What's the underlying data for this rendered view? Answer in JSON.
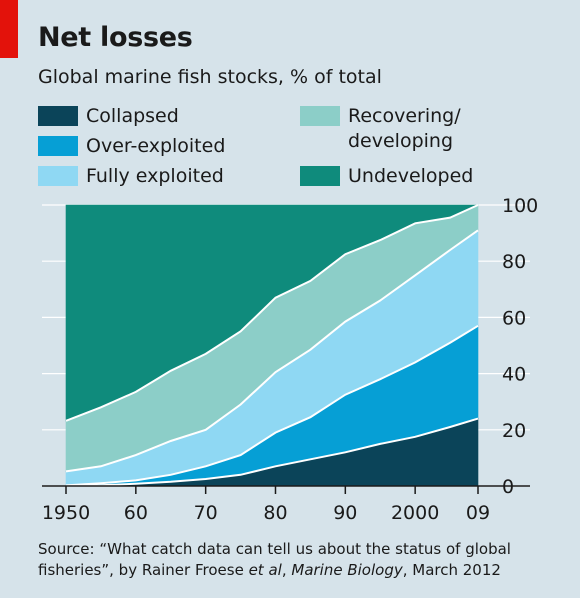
{
  "header": {
    "title": "Net losses",
    "subtitle": "Global marine fish stocks, % of total"
  },
  "legend": [
    {
      "label": "Collapsed",
      "color": "#0b4459"
    },
    {
      "label": "Over-exploited",
      "color": "#069fd5"
    },
    {
      "label": "Fully exploited",
      "color": "#8fd8f3"
    },
    {
      "label": "Recovering/\ndeveloping",
      "color": "#8ccec8"
    },
    {
      "label": "Undeveloped",
      "color": "#0f8b7c"
    }
  ],
  "source": {
    "prefix": "Source: “What catch data can tell us about the status of global fisheries”, by Rainer Froese ",
    "etal": "et al",
    "sep": ", ",
    "journal": "Marine Biology",
    "suffix": ", March 2012"
  },
  "chart_data": {
    "type": "area",
    "stacked": true,
    "x": [
      1950,
      1955,
      1960,
      1965,
      1970,
      1975,
      1980,
      1985,
      1990,
      1995,
      2000,
      2005,
      2009
    ],
    "xtick_values": [
      1950,
      1960,
      1970,
      1980,
      1990,
      2000,
      2009
    ],
    "xtick_labels": [
      "1950",
      "60",
      "70",
      "80",
      "90",
      "2000",
      "09"
    ],
    "ylim": [
      0,
      100
    ],
    "yticks": [
      0,
      20,
      40,
      60,
      80,
      100
    ],
    "y_axis_side": "right",
    "grid": true,
    "legend_position": "top",
    "series": [
      {
        "name": "Collapsed",
        "color": "#0b4459",
        "values": [
          0,
          0.3,
          0.8,
          1.5,
          2.5,
          4,
          7,
          9.5,
          12,
          15,
          17.5,
          21,
          24
        ]
      },
      {
        "name": "Over-exploited",
        "color": "#069fd5",
        "values": [
          0.2,
          0.7,
          1.2,
          2.5,
          4.5,
          7,
          12,
          15,
          20.5,
          23,
          26.5,
          30,
          33
        ]
      },
      {
        "name": "Fully exploited",
        "color": "#8fd8f3",
        "values": [
          5,
          6,
          9,
          12,
          13,
          18,
          21.5,
          24,
          26,
          28,
          31,
          33,
          34
        ]
      },
      {
        "name": "Recovering/\ndeveloping",
        "color": "#8ccec8",
        "values": [
          18,
          21,
          22.5,
          25,
          27,
          26,
          26.5,
          24.5,
          24,
          21.5,
          18.5,
          11.5,
          9
        ]
      },
      {
        "name": "Undeveloped",
        "color": "#0f8b7c",
        "values": [
          76.8,
          72,
          66.5,
          59,
          53,
          45,
          33,
          27,
          17.5,
          12.5,
          6.5,
          4.5,
          0
        ]
      }
    ]
  }
}
